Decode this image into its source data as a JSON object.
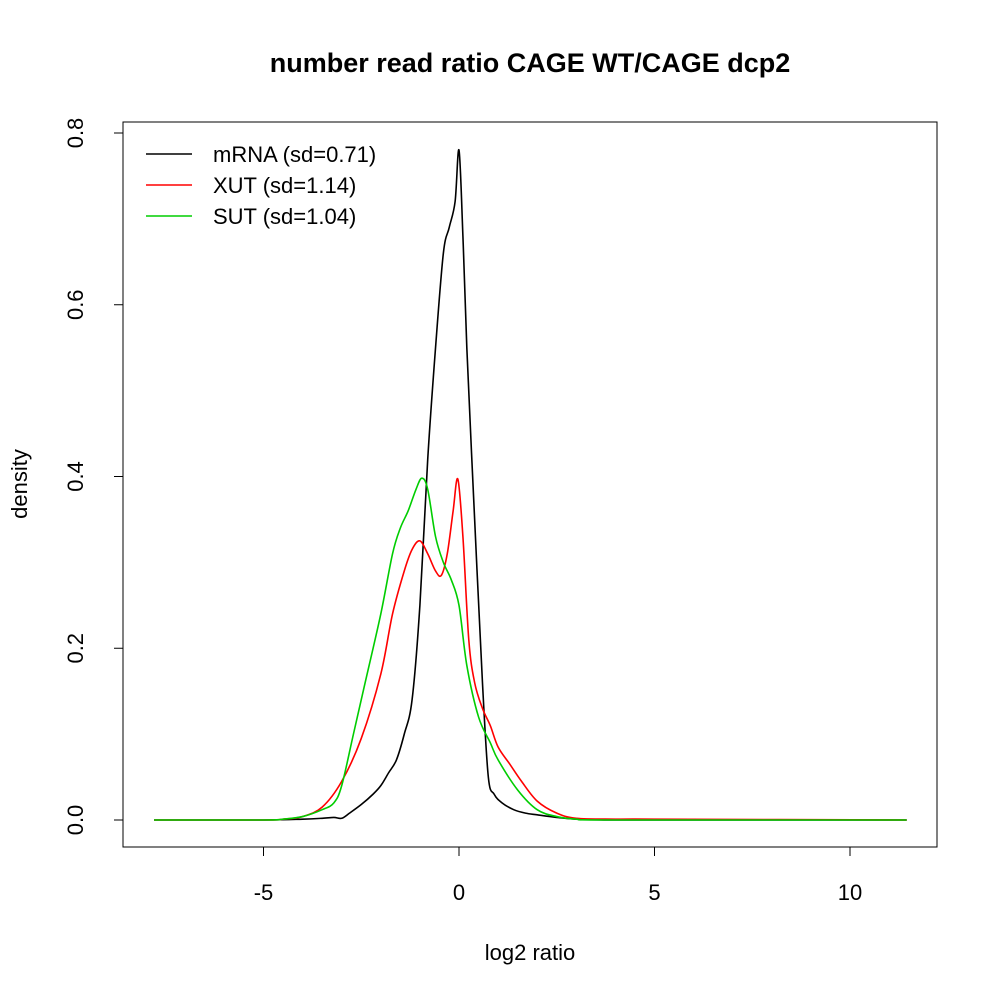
{
  "chart_data": {
    "type": "line",
    "title": "number read ratio CAGE WT/CAGE dcp2",
    "xlabel": "log2 ratio",
    "ylabel": "density",
    "xlim": [
      -8.3,
      12.2
    ],
    "ylim": [
      -0.032,
      0.83
    ],
    "xticks": [
      -5,
      0,
      5,
      10
    ],
    "xtick_labels": [
      "-5",
      "0",
      "5",
      "10"
    ],
    "yticks": [
      0,
      0.2,
      0.4,
      0.6,
      0.8
    ],
    "ytick_labels": [
      "0.0",
      "0.2",
      "0.4",
      "0.6",
      "0.8"
    ],
    "grid": false,
    "legend_position": "top-left",
    "series": [
      {
        "name": "mRNA (sd=0.71)",
        "color": "#000000",
        "x": [
          -7.8,
          -5,
          -4,
          -3.5,
          -3.2,
          -3.0,
          -2.8,
          -2.5,
          -2.2,
          -2.0,
          -1.8,
          -1.6,
          -1.4,
          -1.2,
          -1.0,
          -0.8,
          -0.6,
          -0.4,
          -0.25,
          -0.1,
          0,
          0.1,
          0.2,
          0.4,
          0.6,
          0.75,
          0.9,
          1.1,
          1.4,
          1.7,
          2.0,
          2.5,
          3.0,
          4,
          6,
          11.45
        ],
        "y": [
          0,
          0,
          0.001,
          0.002,
          0.003,
          0.002,
          0.008,
          0.018,
          0.03,
          0.04,
          0.055,
          0.07,
          0.1,
          0.14,
          0.25,
          0.42,
          0.55,
          0.66,
          0.69,
          0.72,
          0.78,
          0.68,
          0.55,
          0.35,
          0.16,
          0.05,
          0.03,
          0.02,
          0.012,
          0.008,
          0.006,
          0.003,
          0.001,
          0,
          0,
          0
        ]
      },
      {
        "name": "XUT (sd=1.14)",
        "color": "#ff0000",
        "x": [
          -7.8,
          -5,
          -4.5,
          -4,
          -3.5,
          -3,
          -2.5,
          -2,
          -1.7,
          -1.4,
          -1.2,
          -1.0,
          -0.8,
          -0.6,
          -0.45,
          -0.3,
          -0.15,
          -0.03,
          0.1,
          0.25,
          0.4,
          0.6,
          0.8,
          1.0,
          1.3,
          1.6,
          2.0,
          2.5,
          3.0,
          4.0,
          5.0,
          11.45
        ],
        "y": [
          0,
          0,
          0.001,
          0.004,
          0.015,
          0.045,
          0.095,
          0.17,
          0.24,
          0.29,
          0.315,
          0.325,
          0.31,
          0.29,
          0.285,
          0.31,
          0.36,
          0.397,
          0.33,
          0.21,
          0.16,
          0.13,
          0.11,
          0.085,
          0.065,
          0.045,
          0.022,
          0.008,
          0.002,
          0.001,
          0.001,
          0
        ]
      },
      {
        "name": "SUT (sd=1.04)",
        "color": "#00cd00",
        "x": [
          -7.8,
          -5,
          -4.5,
          -4,
          -3.5,
          -3.2,
          -3.0,
          -2.7,
          -2.4,
          -2.0,
          -1.7,
          -1.5,
          -1.3,
          -1.1,
          -0.95,
          -0.8,
          -0.6,
          -0.4,
          -0.2,
          0,
          0.2,
          0.5,
          0.8,
          1.0,
          1.5,
          2.0,
          2.5,
          3.0,
          4.0,
          11.45
        ],
        "y": [
          0,
          0,
          0.001,
          0.004,
          0.012,
          0.02,
          0.04,
          0.1,
          0.16,
          0.24,
          0.31,
          0.34,
          0.36,
          0.385,
          0.398,
          0.385,
          0.33,
          0.3,
          0.28,
          0.25,
          0.18,
          0.12,
          0.09,
          0.07,
          0.035,
          0.012,
          0.004,
          0.001,
          0,
          0
        ]
      }
    ]
  }
}
